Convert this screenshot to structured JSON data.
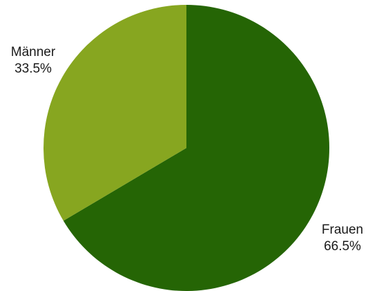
{
  "chart_data": {
    "type": "pie",
    "title": "",
    "start_angle_deg": 0,
    "direction": "clockwise",
    "slices": [
      {
        "label": "Frauen",
        "value": 66.5,
        "value_label": "66.5%",
        "color": "#256505"
      },
      {
        "label": "Männer",
        "value": 33.5,
        "value_label": "33.5%",
        "color": "#87a620"
      }
    ]
  }
}
